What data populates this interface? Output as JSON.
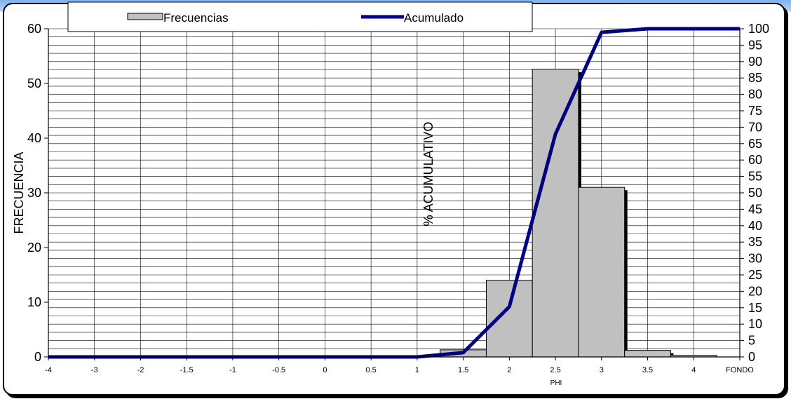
{
  "colors": {
    "bar_fill": "#c0c0c0",
    "bar_stroke": "#000000",
    "bar_shadow": "#000000",
    "line": "#000080",
    "grid": "#000000"
  },
  "legend": {
    "placement": "top",
    "bar_label": "Frecuencias",
    "line_label": "Acumulado"
  },
  "chart_data": {
    "type": "bar",
    "categories": [
      "-4",
      "-3",
      "-2",
      "-1.5",
      "-1",
      "-0.5",
      "0",
      "0.5",
      "1",
      "1.5",
      "2",
      "2.5",
      "3",
      "3.5",
      "4",
      "FONDO"
    ],
    "xlabel": "PHI",
    "ylabel": "FRECUENCIA",
    "y2label": "% ACUMULATIVO",
    "ylim": [
      0,
      60
    ],
    "y2lim": [
      0,
      100
    ],
    "y_ticks": [
      0,
      10,
      20,
      30,
      40,
      50,
      60
    ],
    "y2_ticks": [
      0,
      5,
      10,
      15,
      20,
      25,
      30,
      35,
      40,
      45,
      50,
      55,
      60,
      65,
      70,
      75,
      80,
      85,
      90,
      95,
      100
    ],
    "grid": true,
    "series": [
      {
        "name": "Frecuencias",
        "type": "bar",
        "axis": "left",
        "values": [
          0,
          0,
          0,
          0,
          0,
          0,
          0,
          0,
          0,
          1.3,
          14,
          52.6,
          31,
          1.2,
          0.3,
          0
        ]
      },
      {
        "name": "Acumulado",
        "type": "line",
        "axis": "right",
        "values": [
          0,
          0,
          0,
          0,
          0,
          0,
          0,
          0,
          0,
          1.3,
          15.3,
          67.9,
          98.9,
          100,
          100,
          100
        ]
      }
    ]
  }
}
